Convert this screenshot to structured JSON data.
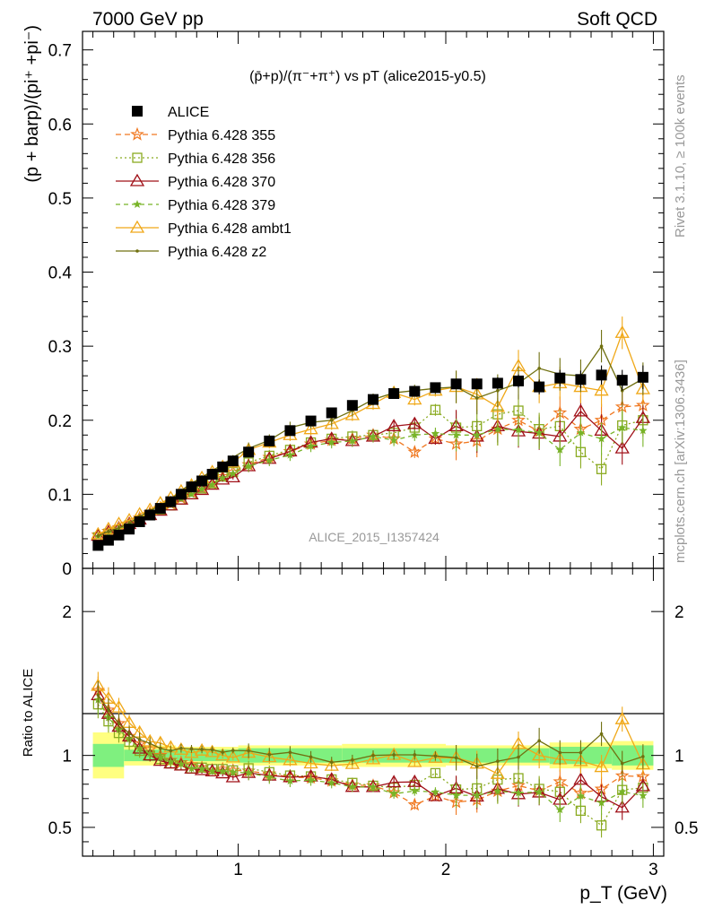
{
  "header": {
    "left": "7000 GeV pp",
    "right": "Soft QCD"
  },
  "side_labels": {
    "rivet": "Rivet 3.1.10, ≥ 100k events",
    "mcplots": "mcplots.cern.ch [arXiv:1306.3436]"
  },
  "colors": {
    "ALICE": "#000000",
    "p355": "#f07820",
    "p356": "#8aaa20",
    "p370": "#a01018",
    "p379": "#78b428",
    "ambt1": "#f0a818",
    "z2": "#707010",
    "band_inner": "#7ff07f",
    "band_outer": "#ffff80"
  },
  "chart_data": {
    "type": "line",
    "title": "(p̄+p)/(π⁻+π⁺) vs pT (alice2015-y0.5)",
    "watermark": "ALICE_2015_I1357424",
    "xlabel": "p_T (GeV)",
    "ylabel": "(p + barp)/(pi⁺ +pi⁻)",
    "ratio_ylabel": "Ratio to ALICE",
    "xlim": [
      0.25,
      3.05
    ],
    "ylim": [
      0,
      0.725
    ],
    "ratio_ylim": [
      0.3,
      2.3
    ],
    "log_x": false,
    "grid": false,
    "legend_position": "top-left",
    "x_ticks": [
      "1",
      "2",
      "3"
    ],
    "y_ticks": [
      "0",
      "0.1",
      "0.2",
      "0.3",
      "0.4",
      "0.5",
      "0.6",
      "0.7"
    ],
    "ratio_ticks": [
      "0.5",
      "1",
      "2"
    ],
    "x": [
      0.325,
      0.375,
      0.425,
      0.475,
      0.525,
      0.575,
      0.625,
      0.675,
      0.725,
      0.775,
      0.825,
      0.875,
      0.925,
      0.975,
      1.05,
      1.15,
      1.25,
      1.35,
      1.45,
      1.55,
      1.65,
      1.75,
      1.85,
      1.95,
      2.05,
      2.15,
      2.25,
      2.35,
      2.45,
      2.55,
      2.65,
      2.75,
      2.85,
      2.95
    ],
    "series": [
      {
        "name": "ALICE",
        "color_key": "ALICE",
        "marker": "square-filled",
        "style": "points",
        "values": [
          0.031,
          0.038,
          0.045,
          0.053,
          0.063,
          0.072,
          0.081,
          0.09,
          0.1,
          0.11,
          0.118,
          0.127,
          0.137,
          0.145,
          0.157,
          0.172,
          0.186,
          0.199,
          0.21,
          0.22,
          0.228,
          0.236,
          0.239,
          0.244,
          0.249,
          0.249,
          0.25,
          0.253,
          0.245,
          0.257,
          0.255,
          0.261,
          0.254,
          0.258
        ],
        "errors": [
          0.001,
          0.001,
          0.001,
          0.001,
          0.001,
          0.001,
          0.002,
          0.002,
          0.002,
          0.002,
          0.002,
          0.002,
          0.002,
          0.003,
          0.003,
          0.003,
          0.003,
          0.004,
          0.004,
          0.004,
          0.005,
          0.005,
          0.005,
          0.006,
          0.006,
          0.007,
          0.008,
          0.009,
          0.01,
          0.011,
          0.012,
          0.013,
          0.014,
          0.016
        ]
      },
      {
        "name": "Pythia 6.428 355",
        "color_key": "p355",
        "marker": "star-open",
        "dash": "6,4",
        "values": [
          0.045,
          0.05,
          0.055,
          0.06,
          0.068,
          0.075,
          0.081,
          0.087,
          0.095,
          0.103,
          0.108,
          0.114,
          0.124,
          0.13,
          0.14,
          0.15,
          0.158,
          0.168,
          0.173,
          0.175,
          0.18,
          0.175,
          0.157,
          0.175,
          0.168,
          0.172,
          0.188,
          0.2,
          0.185,
          0.21,
          0.188,
          0.2,
          0.218,
          0.22
        ]
      },
      {
        "name": "Pythia 6.428 356",
        "color_key": "p356",
        "marker": "square-open",
        "dash": "2,3",
        "values": [
          0.042,
          0.047,
          0.052,
          0.058,
          0.065,
          0.072,
          0.079,
          0.085,
          0.093,
          0.1,
          0.108,
          0.115,
          0.124,
          0.13,
          0.143,
          0.152,
          0.16,
          0.17,
          0.175,
          0.178,
          0.18,
          0.183,
          0.19,
          0.214,
          0.19,
          0.192,
          0.208,
          0.213,
          0.188,
          0.192,
          0.157,
          0.134,
          0.193,
          0.2
        ]
      },
      {
        "name": "Pythia 6.428 370",
        "color_key": "p370",
        "marker": "triangle-open",
        "dash": "",
        "values": [
          0.044,
          0.049,
          0.054,
          0.06,
          0.066,
          0.072,
          0.078,
          0.085,
          0.093,
          0.1,
          0.106,
          0.113,
          0.12,
          0.123,
          0.138,
          0.148,
          0.158,
          0.17,
          0.175,
          0.172,
          0.178,
          0.192,
          0.195,
          0.175,
          0.192,
          0.178,
          0.192,
          0.185,
          0.182,
          0.178,
          0.212,
          0.186,
          0.162,
          0.203
        ]
      },
      {
        "name": "Pythia 6.428 379",
        "color_key": "p379",
        "marker": "star-filled",
        "dash": "5,4",
        "values": [
          0.043,
          0.048,
          0.053,
          0.059,
          0.066,
          0.073,
          0.08,
          0.086,
          0.094,
          0.1,
          0.107,
          0.113,
          0.122,
          0.128,
          0.138,
          0.146,
          0.153,
          0.165,
          0.17,
          0.172,
          0.178,
          0.173,
          0.18,
          0.182,
          0.18,
          0.18,
          0.188,
          0.187,
          0.183,
          0.16,
          0.183,
          0.175,
          0.19,
          0.186
        ]
      },
      {
        "name": "Pythia 6.428 ambt1",
        "color_key": "ambt1",
        "marker": "triangle-open",
        "dash": "",
        "values": [
          0.046,
          0.053,
          0.06,
          0.065,
          0.073,
          0.079,
          0.088,
          0.095,
          0.104,
          0.112,
          0.122,
          0.13,
          0.137,
          0.143,
          0.16,
          0.17,
          0.18,
          0.188,
          0.195,
          0.207,
          0.222,
          0.237,
          0.228,
          0.24,
          0.245,
          0.235,
          0.218,
          0.273,
          0.245,
          0.25,
          0.245,
          0.24,
          0.318,
          0.242
        ]
      },
      {
        "name": "Pythia 6.428 z2",
        "color_key": "z2",
        "marker": "dot",
        "dash": "",
        "values": [
          0.044,
          0.05,
          0.055,
          0.061,
          0.07,
          0.078,
          0.085,
          0.093,
          0.105,
          0.115,
          0.123,
          0.132,
          0.14,
          0.15,
          0.162,
          0.173,
          0.19,
          0.197,
          0.2,
          0.213,
          0.228,
          0.237,
          0.24,
          0.243,
          0.245,
          0.23,
          0.24,
          0.25,
          0.27,
          0.262,
          0.26,
          0.3,
          0.24,
          0.256
        ]
      }
    ],
    "band_x": [
      0.3,
      0.45,
      0.7,
      1.0,
      1.5,
      2.0,
      2.5,
      2.8,
      3.0
    ],
    "band_inner_half": [
      0.08,
      0.04,
      0.04,
      0.05,
      0.05,
      0.05,
      0.06,
      0.07
    ],
    "band_outer_half": [
      0.16,
      0.07,
      0.06,
      0.07,
      0.08,
      0.07,
      0.09,
      0.1
    ]
  }
}
